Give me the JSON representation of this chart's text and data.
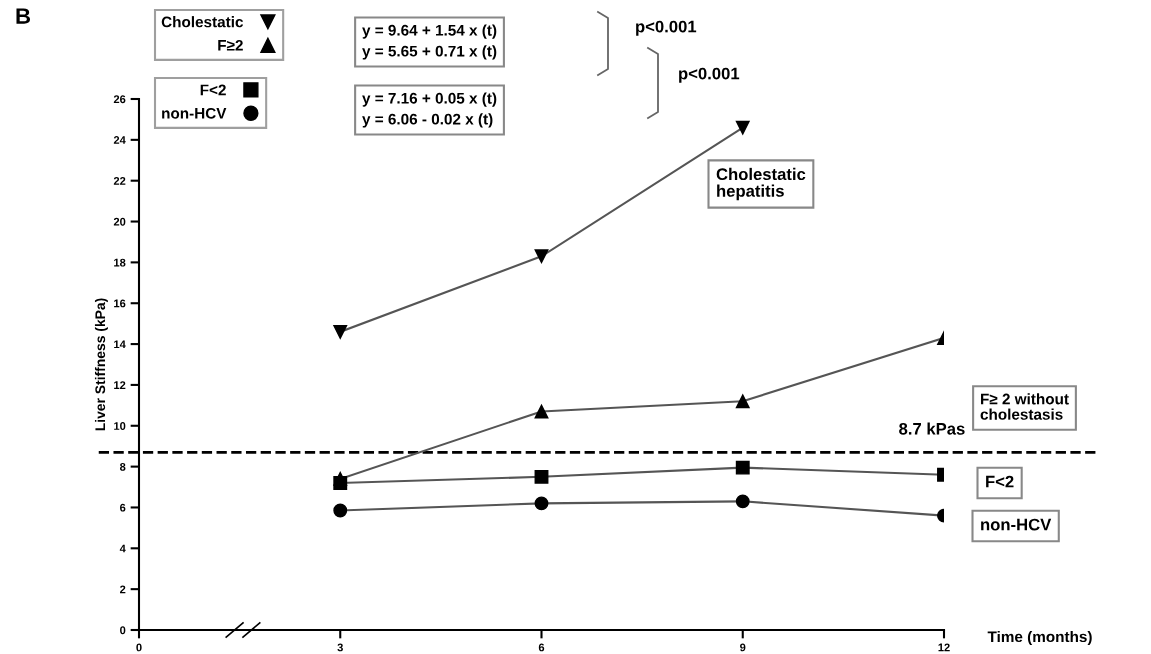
{
  "chart_data": {
    "type": "line",
    "title": "B",
    "xlabel": "Time (months)",
    "ylabel": "Liver Stiffness (kPa)",
    "x": [
      3,
      6,
      9,
      12
    ],
    "series": [
      {
        "name": "Cholestatic",
        "color": "#000000",
        "marker": "triangle-down",
        "x": [
          3,
          6,
          9
        ],
        "values": [
          14.6,
          18.3,
          24.6
        ]
      },
      {
        "name": "F≥2",
        "color": "#000000",
        "marker": "triangle",
        "values": [
          7.4,
          10.7,
          11.2,
          14.3
        ]
      },
      {
        "name": "F<2",
        "color": "#000000",
        "marker": "square",
        "values": [
          7.2,
          7.5,
          7.95,
          7.6
        ]
      },
      {
        "name": "non-HCV",
        "color": "#000000",
        "marker": "circle",
        "values": [
          5.85,
          6.2,
          6.3,
          5.6
        ]
      }
    ],
    "xlim": [
      0,
      12
    ],
    "xticks": [
      0,
      3,
      6,
      9,
      12
    ],
    "ylim": [
      0,
      26
    ],
    "yticks": [
      0,
      2,
      4,
      6,
      8,
      10,
      12,
      14,
      16,
      18,
      20,
      22,
      24,
      26
    ],
    "ref_lines": [
      {
        "axis": "y",
        "value": 8.7,
        "label": "8.7 kPas",
        "color": "#000000",
        "line_style": "dashed"
      }
    ],
    "annotations": [
      "y = 9.64 + 1.54 x (t)",
      "y = 5.65 + 0.71 x (t)",
      "y = 7.16 + 0.05 x (t)",
      "y = 6.06 - 0.02 x (t)",
      "p<0.001",
      "p<0.001",
      "Cholestatic\nhepatitis",
      "F≥ 2 without\ncholestasis",
      "F<2",
      "non-HCV"
    ],
    "legend": "top left",
    "grid": false,
    "line_style": "solid"
  }
}
